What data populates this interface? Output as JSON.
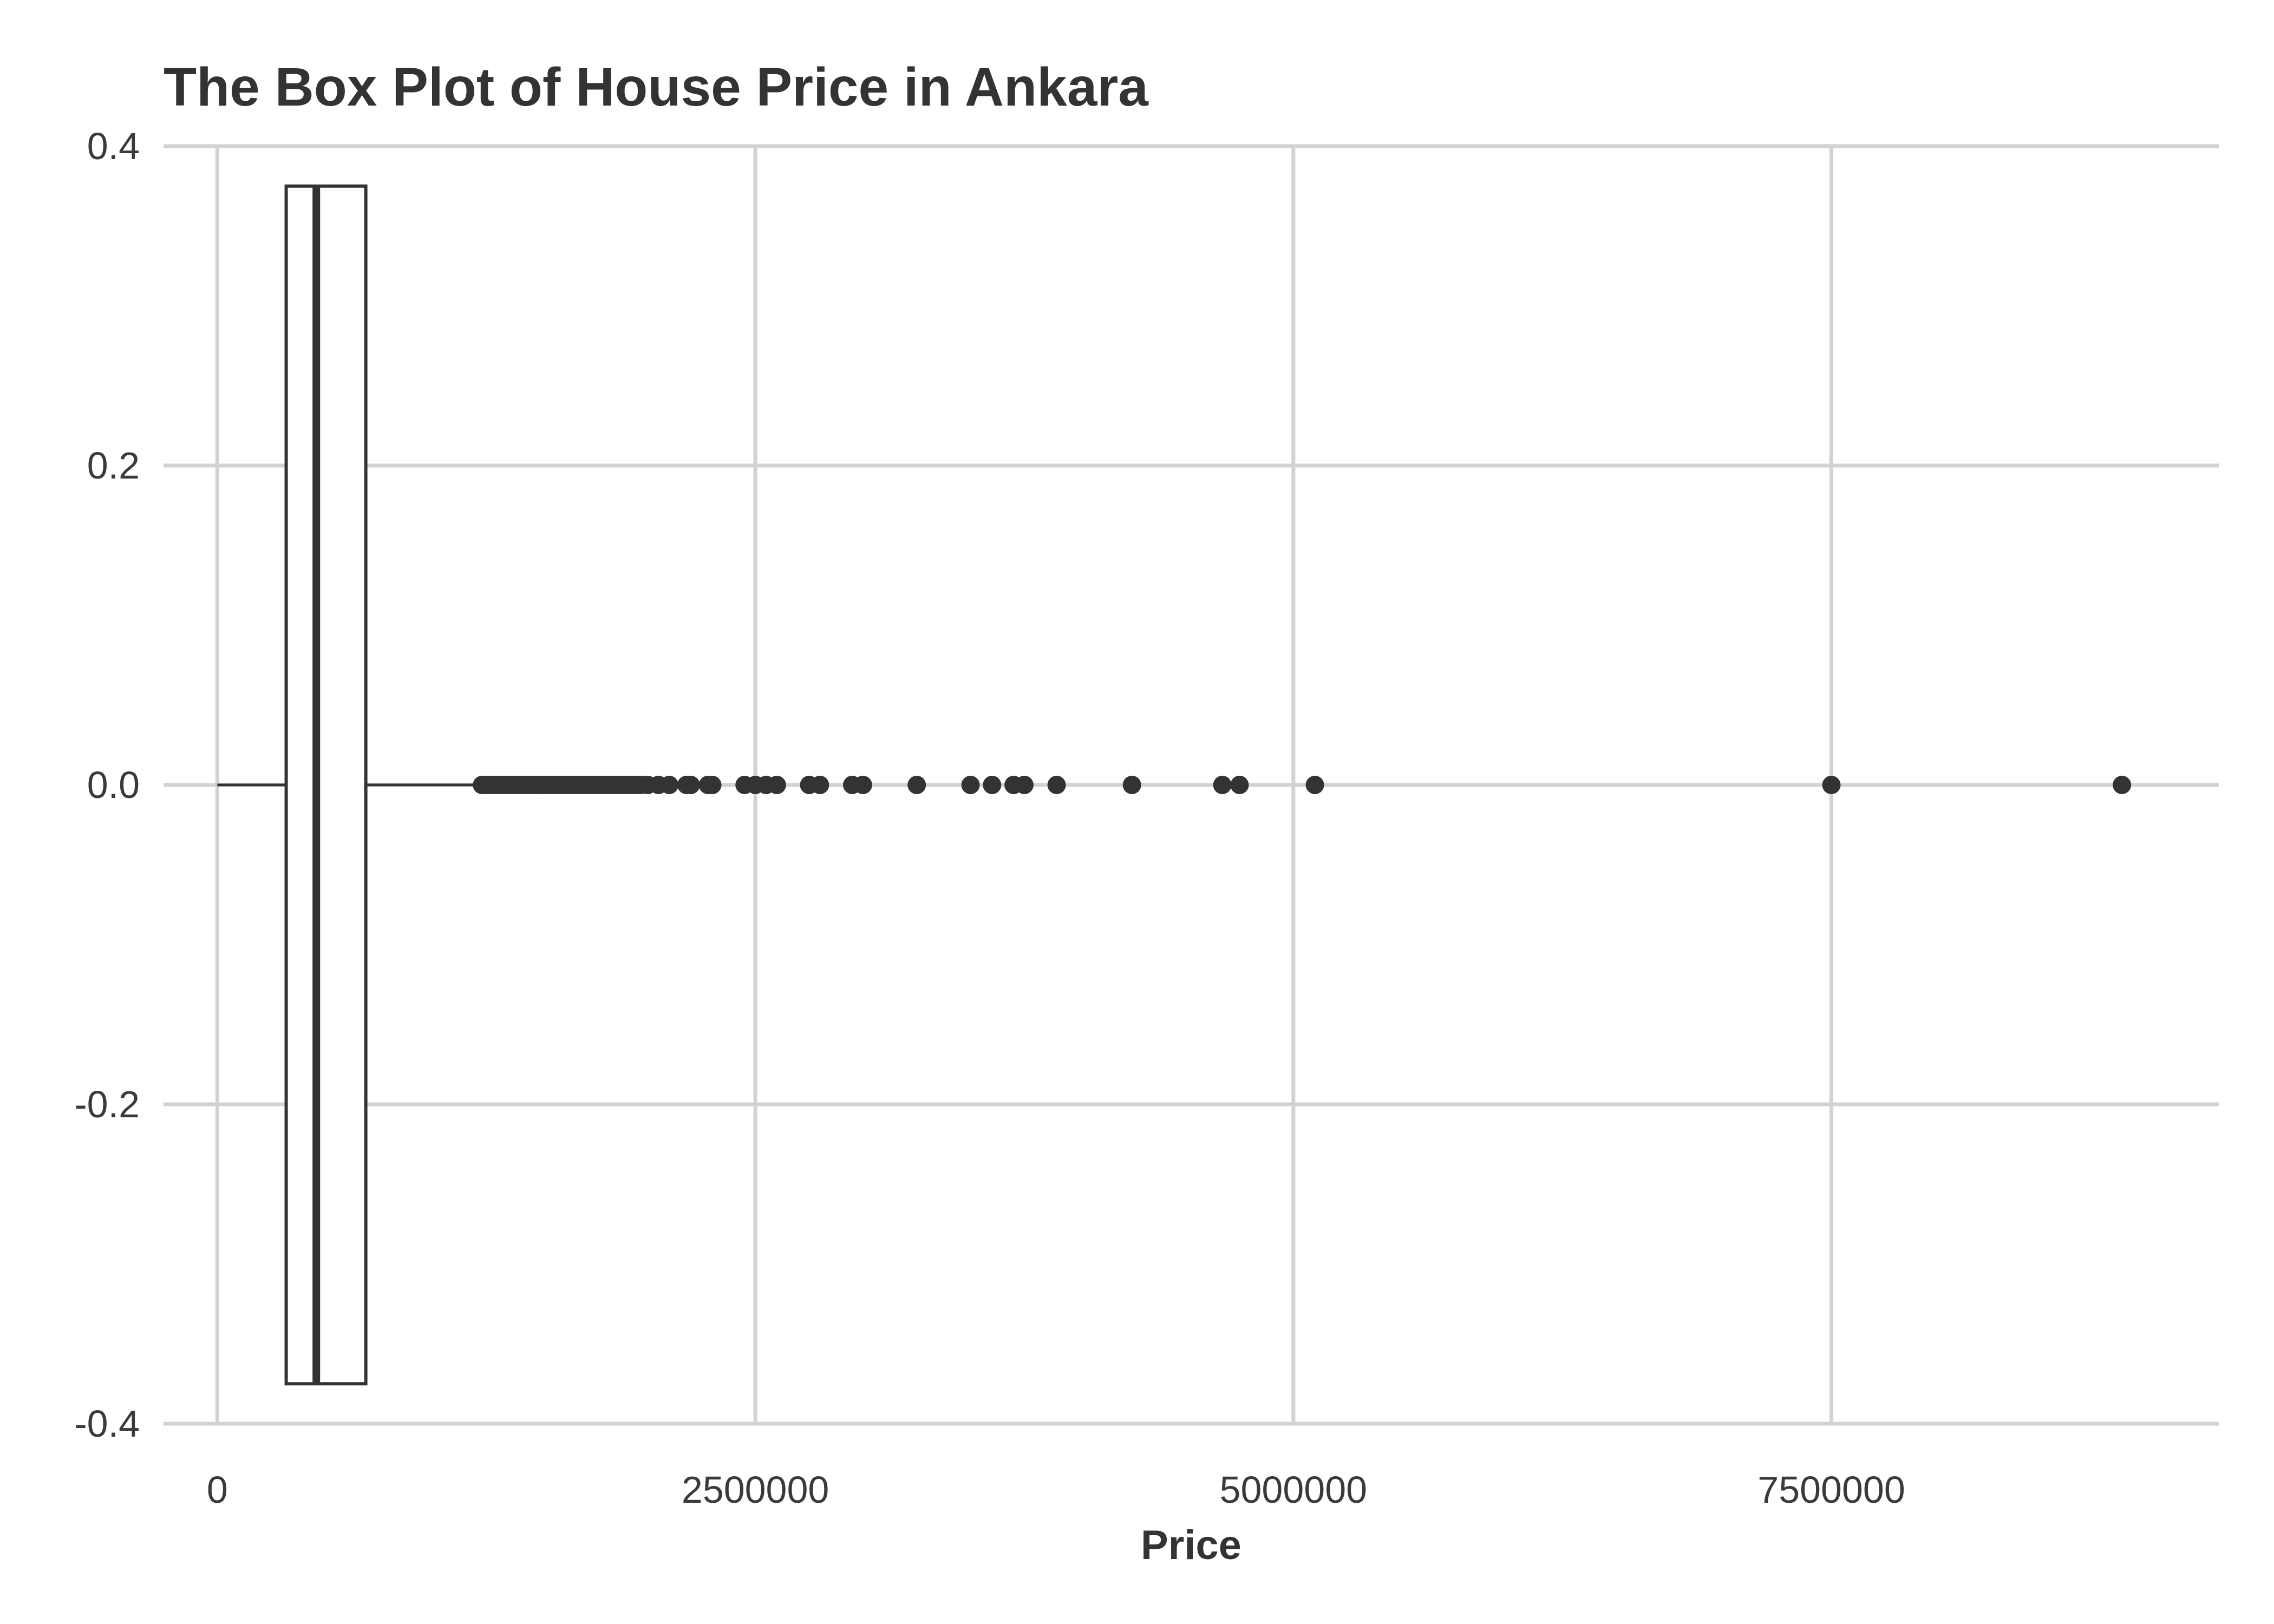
{
  "chart_data": {
    "type": "box",
    "title": "The Box Plot of House Price in Ankara",
    "xlabel": "Price",
    "ylabel": "",
    "xlim": [
      -250000,
      9300000
    ],
    "ylim": [
      -0.4,
      0.4
    ],
    "x_ticks": [
      {
        "value": 0,
        "label": "0"
      },
      {
        "value": 2500000,
        "label": "2500000"
      },
      {
        "value": 5000000,
        "label": "5000000"
      },
      {
        "value": 7500000,
        "label": "7500000"
      }
    ],
    "y_ticks": [
      {
        "value": 0.4,
        "label": "0.4"
      },
      {
        "value": 0.2,
        "label": "0.2"
      },
      {
        "value": 0.0,
        "label": "0.0"
      },
      {
        "value": -0.2,
        "label": "-0.2"
      },
      {
        "value": -0.4,
        "label": "-0.4"
      }
    ],
    "grid": true,
    "box": {
      "whisker_low": 0,
      "q1": 320000,
      "median": 460000,
      "q3": 690000,
      "whisker_high": 1210000,
      "box_ymin": -0.375,
      "box_ymax": 0.375,
      "center_y": 0.0
    },
    "outliers": [
      1230000,
      1250000,
      1270000,
      1290000,
      1310000,
      1330000,
      1350000,
      1370000,
      1390000,
      1410000,
      1430000,
      1450000,
      1470000,
      1490000,
      1510000,
      1530000,
      1550000,
      1570000,
      1590000,
      1610000,
      1630000,
      1650000,
      1670000,
      1690000,
      1710000,
      1730000,
      1750000,
      1770000,
      1790000,
      1810000,
      1830000,
      1850000,
      1870000,
      1890000,
      1910000,
      1930000,
      1950000,
      1970000,
      2000000,
      2050000,
      2100000,
      2180000,
      2200000,
      2280000,
      2300000,
      2450000,
      2500000,
      2550000,
      2600000,
      2750000,
      2800000,
      2950000,
      3000000,
      3250000,
      3500000,
      3600000,
      3700000,
      3750000,
      3900000,
      4250000,
      4670000,
      4750000,
      5100000,
      7500000,
      8850000
    ],
    "colors": {
      "box_stroke": "#333333",
      "box_fill": "#ffffff",
      "points": "#333333",
      "grid": "#d2d2d2",
      "text": "#333333"
    }
  }
}
